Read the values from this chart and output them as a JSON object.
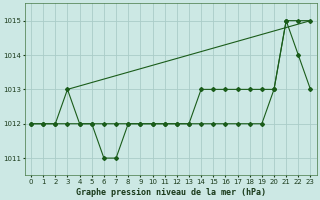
{
  "background_color": "#cce8e4",
  "grid_color": "#aaccc8",
  "line_color": "#1a5c1a",
  "title": "Graphe pression niveau de la mer (hPa)",
  "xlim": [
    -0.5,
    23.5
  ],
  "ylim": [
    1010.5,
    1015.5
  ],
  "yticks": [
    1011,
    1012,
    1013,
    1014,
    1015
  ],
  "xticks": [
    0,
    1,
    2,
    3,
    4,
    5,
    6,
    7,
    8,
    9,
    10,
    11,
    12,
    13,
    14,
    15,
    16,
    17,
    18,
    19,
    20,
    21,
    22,
    23
  ],
  "series1_x": [
    0,
    1,
    2,
    3,
    4,
    5,
    6,
    7,
    8,
    9,
    10,
    11,
    12,
    13,
    14,
    15,
    16,
    17,
    18,
    19,
    20,
    21,
    22,
    23
  ],
  "series1_y": [
    1012,
    1012,
    1012,
    1013,
    1012,
    1012,
    1011,
    1011,
    1012,
    1012,
    1012,
    1012,
    1012,
    1012,
    1013,
    1013,
    1013,
    1013,
    1013,
    1013,
    1013,
    1015,
    1014,
    1013
  ],
  "series2_x": [
    0,
    1,
    2,
    3,
    4,
    5,
    6,
    7,
    8,
    9,
    10,
    11,
    12,
    13,
    14,
    15,
    16,
    17,
    18,
    19,
    20,
    21,
    22,
    23
  ],
  "series2_y": [
    1012,
    1012,
    1012,
    1012,
    1012,
    1012,
    1012,
    1012,
    1012,
    1012,
    1012,
    1012,
    1012,
    1012,
    1012,
    1012,
    1012,
    1012,
    1012,
    1012,
    1013,
    1015,
    1015,
    1015
  ],
  "series3_x": [
    3,
    23
  ],
  "series3_y": [
    1013,
    1015
  ],
  "title_fontsize": 6,
  "tick_fontsize": 5,
  "line_width": 0.8,
  "marker_size": 2.0
}
